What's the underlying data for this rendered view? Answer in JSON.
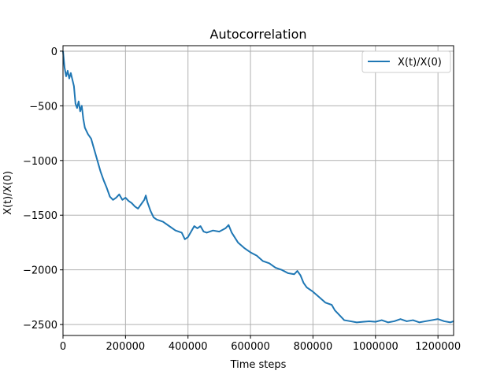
{
  "chart_data": {
    "type": "line",
    "title": "Autocorrelation",
    "xlabel": "Time steps",
    "ylabel": "X(t)/X(0)",
    "xlim": [
      0,
      1250000
    ],
    "ylim": [
      -2600,
      50
    ],
    "xticks": [
      0,
      200000,
      400000,
      600000,
      800000,
      1000000,
      1200000
    ],
    "yticks": [
      0,
      -500,
      -1000,
      -1500,
      -2000,
      -2500
    ],
    "grid": true,
    "legend_position": "top-right",
    "series": [
      {
        "name": "X(t)/X(0)",
        "color": "#1f77b4",
        "x": [
          0,
          5000,
          10000,
          15000,
          20000,
          25000,
          30000,
          35000,
          40000,
          45000,
          50000,
          55000,
          60000,
          65000,
          70000,
          80000,
          90000,
          100000,
          110000,
          120000,
          130000,
          140000,
          150000,
          160000,
          170000,
          180000,
          190000,
          200000,
          210000,
          220000,
          230000,
          240000,
          250000,
          260000,
          265000,
          270000,
          280000,
          290000,
          300000,
          320000,
          340000,
          360000,
          380000,
          390000,
          400000,
          410000,
          420000,
          430000,
          440000,
          450000,
          460000,
          480000,
          500000,
          520000,
          530000,
          540000,
          560000,
          580000,
          600000,
          620000,
          640000,
          660000,
          680000,
          700000,
          720000,
          740000,
          750000,
          760000,
          770000,
          780000,
          800000,
          820000,
          840000,
          860000,
          870000,
          880000,
          900000,
          920000,
          940000,
          960000,
          980000,
          1000000,
          1020000,
          1040000,
          1060000,
          1080000,
          1100000,
          1120000,
          1140000,
          1160000,
          1180000,
          1200000,
          1220000,
          1240000,
          1250000
        ],
        "values": [
          0,
          -150,
          -230,
          -180,
          -250,
          -200,
          -260,
          -320,
          -480,
          -520,
          -460,
          -550,
          -500,
          -620,
          -700,
          -760,
          -800,
          -900,
          -1000,
          -1100,
          -1180,
          -1250,
          -1330,
          -1360,
          -1340,
          -1310,
          -1360,
          -1340,
          -1370,
          -1390,
          -1420,
          -1440,
          -1400,
          -1360,
          -1320,
          -1380,
          -1460,
          -1520,
          -1540,
          -1560,
          -1600,
          -1640,
          -1660,
          -1720,
          -1700,
          -1650,
          -1600,
          -1620,
          -1600,
          -1650,
          -1660,
          -1640,
          -1650,
          -1620,
          -1590,
          -1660,
          -1750,
          -1800,
          -1840,
          -1870,
          -1920,
          -1940,
          -1980,
          -2000,
          -2030,
          -2040,
          -2010,
          -2050,
          -2120,
          -2160,
          -2200,
          -2250,
          -2300,
          -2320,
          -2370,
          -2400,
          -2460,
          -2470,
          -2480,
          -2475,
          -2470,
          -2475,
          -2460,
          -2480,
          -2470,
          -2450,
          -2470,
          -2460,
          -2480,
          -2470,
          -2460,
          -2450,
          -2470,
          -2480,
          -2470
        ]
      }
    ]
  }
}
